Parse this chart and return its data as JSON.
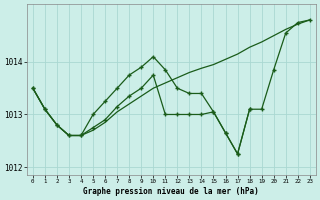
{
  "title": "Graphe pression niveau de la mer (hPa)",
  "background_color": "#cceee8",
  "grid_color": "#aad8d2",
  "line_color": "#1a5c1a",
  "x_labels": [
    "0",
    "1",
    "2",
    "3",
    "4",
    "5",
    "6",
    "7",
    "8",
    "9",
    "10",
    "11",
    "12",
    "13",
    "14",
    "15",
    "16",
    "17",
    "18",
    "19",
    "20",
    "21",
    "22",
    "23"
  ],
  "x_values": [
    0,
    1,
    2,
    3,
    4,
    5,
    6,
    7,
    8,
    9,
    10,
    11,
    12,
    13,
    14,
    15,
    16,
    17,
    18,
    19,
    20,
    21,
    22,
    23
  ],
  "line1_x": [
    0,
    1,
    2,
    3,
    4,
    5,
    6,
    7,
    8,
    9,
    10,
    11,
    12,
    13,
    14,
    15,
    16,
    17,
    18
  ],
  "line1_y": [
    1013.5,
    1013.1,
    1012.8,
    1012.6,
    1012.6,
    1012.75,
    1012.9,
    1013.15,
    1013.35,
    1013.5,
    1013.75,
    1013.0,
    1013.0,
    1013.0,
    1013.0,
    1013.05,
    1012.65,
    1012.25,
    1013.1
  ],
  "line2_x": [
    0,
    1,
    2,
    3,
    4,
    5,
    6,
    7,
    8,
    9,
    10,
    11,
    12,
    13,
    14,
    15,
    16,
    17,
    18,
    19,
    20,
    21,
    22,
    23
  ],
  "line2_y": [
    1013.5,
    1013.1,
    1012.8,
    1012.6,
    1012.6,
    1013.0,
    1013.25,
    1013.5,
    1013.75,
    1013.9,
    1014.1,
    1013.85,
    1013.5,
    1013.4,
    1013.4,
    1013.05,
    1012.65,
    1012.25,
    1013.1,
    1013.1,
    1013.85,
    1014.55,
    1014.75,
    1014.8
  ],
  "line3_x": [
    0,
    1,
    2,
    3,
    4,
    5,
    6,
    7,
    8,
    9,
    10,
    11,
    12,
    13,
    14,
    15,
    16,
    17,
    18,
    19,
    20,
    21,
    22,
    23
  ],
  "line3_y": [
    1013.5,
    1013.1,
    1012.8,
    1012.6,
    1012.6,
    1012.7,
    1012.85,
    1013.05,
    1013.2,
    1013.35,
    1013.5,
    1013.6,
    1013.7,
    1013.8,
    1013.88,
    1013.95,
    1014.05,
    1014.15,
    1014.28,
    1014.38,
    1014.5,
    1014.62,
    1014.72,
    1014.8
  ],
  "ylim": [
    1011.85,
    1015.1
  ],
  "yticks": [
    1012,
    1013,
    1014
  ]
}
